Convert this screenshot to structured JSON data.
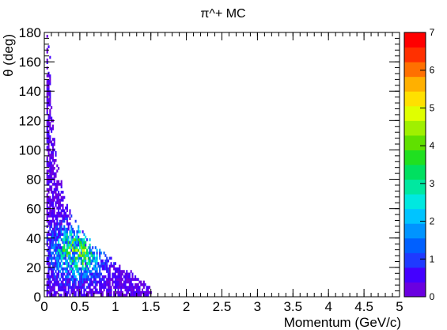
{
  "chart_data": {
    "type": "heatmap",
    "title": "π^+ MC",
    "xlabel": "Momentum (GeV/c)",
    "ylabel": "θ (deg)",
    "xlim": [
      0,
      5
    ],
    "ylim": [
      0,
      180
    ],
    "x_ticks": [
      "0",
      "0.5",
      "1",
      "1.5",
      "2",
      "2.5",
      "3",
      "3.5",
      "4",
      "4.5",
      "5"
    ],
    "y_ticks": [
      "0",
      "20",
      "40",
      "60",
      "80",
      "100",
      "120",
      "140",
      "160",
      "180"
    ],
    "z_range": [
      0,
      7
    ],
    "z_ticks": [
      "0",
      "1",
      "2",
      "3",
      "4",
      "5",
      "6",
      "7"
    ],
    "colormap": [
      "#6a00e0",
      "#4400ff",
      "#1f3aff",
      "#0060ff",
      "#0094ff",
      "#00c4ff",
      "#00e8e0",
      "#00e8a0",
      "#00e060",
      "#20e020",
      "#60e000",
      "#a0f000",
      "#e0ff00",
      "#ffe000",
      "#ffb000",
      "#ff7000",
      "#ff3000",
      "#ff0000"
    ],
    "density_envelope": {
      "p": [
        0.03,
        0.08,
        0.1,
        0.15,
        0.2,
        0.3,
        0.4,
        0.5,
        0.6,
        0.7,
        0.8,
        0.9,
        1.0,
        1.1,
        1.2,
        1.3,
        1.4,
        1.5
      ],
      "theta_max": [
        178,
        160,
        128,
        98,
        84,
        64,
        54,
        45,
        40,
        34,
        30,
        27,
        23,
        20,
        17,
        13,
        9,
        5
      ]
    },
    "peak_region": {
      "p": 0.45,
      "theta": 30,
      "counts": 3
    }
  }
}
